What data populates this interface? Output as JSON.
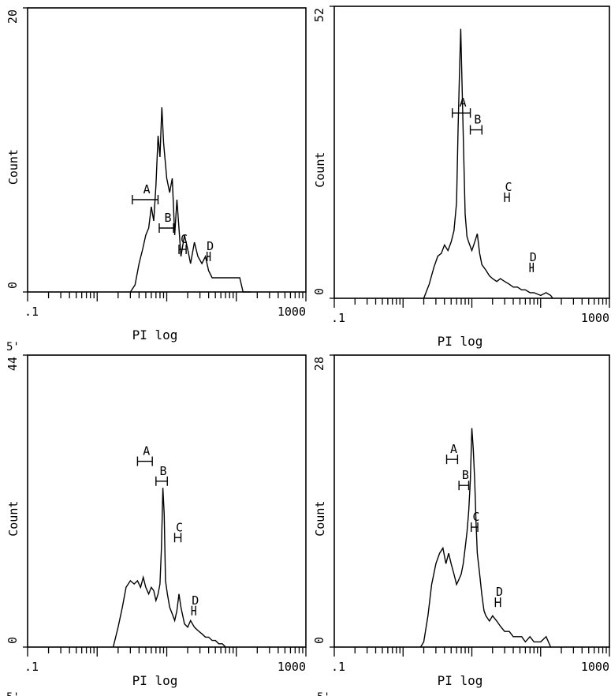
{
  "chart_data": [
    {
      "panel": "i",
      "type": "line",
      "xscale": "log",
      "xlim": [
        0.1,
        1000
      ],
      "ylim": [
        0,
        20
      ],
      "x_tick_labels": [
        ".1",
        "1000"
      ],
      "y_tick_labels": [
        "0",
        "20"
      ],
      "xlabel": "PI log",
      "ylabel": "Count",
      "corner_text": "5'",
      "series": [
        {
          "x": [
            3.0,
            3.5,
            4.0,
            4.5,
            5.0,
            5.5,
            6.0,
            6.5,
            7.0,
            7.5,
            8.0,
            8.5,
            9.0,
            10,
            11,
            12,
            13,
            14,
            15,
            16,
            18,
            20,
            22,
            25,
            28,
            32,
            36,
            40,
            45,
            50,
            56,
            63,
            71,
            80,
            90,
            100,
            112,
            125,
            140,
            160
          ],
          "y": [
            0,
            0.5,
            2,
            3,
            4,
            4.5,
            6,
            5,
            7.5,
            11,
            9.5,
            13,
            10.5,
            8,
            7,
            8,
            4,
            6.5,
            4.5,
            2.5,
            4,
            3,
            2,
            3.5,
            2.5,
            2,
            2.5,
            1.5,
            1,
            1,
            1,
            1,
            1,
            1,
            1,
            1,
            1,
            0,
            0,
            0
          ]
        }
      ],
      "markers": [
        {
          "label": "A",
          "x_min": 3.2,
          "x_max": 7.5,
          "y": 6.5
        },
        {
          "label": "B",
          "x_min": 7.8,
          "x_max": 12.5,
          "y": 4.5
        },
        {
          "label": "C",
          "x_min": 15.0,
          "x_max": 19.0,
          "y": 3.0
        },
        {
          "label": "D",
          "x_min": 38.0,
          "x_max": 42.0,
          "y": 2.5
        }
      ]
    },
    {
      "panel": "ii",
      "type": "line",
      "xscale": "log",
      "xlim": [
        0.1,
        1000
      ],
      "ylim": [
        0,
        52
      ],
      "x_tick_labels": [
        ".1",
        "1000"
      ],
      "y_tick_labels": [
        "0",
        "52"
      ],
      "xlabel": "PI log",
      "ylabel": "Count",
      "series": [
        {
          "x": [
            2.0,
            2.4,
            2.8,
            3.2,
            3.6,
            4.0,
            4.5,
            5.0,
            5.5,
            6.0,
            6.3,
            6.6,
            6.9,
            7.2,
            7.6,
            8.0,
            8.5,
            9.0,
            10,
            11,
            12,
            13,
            14,
            16,
            18,
            20,
            23,
            26,
            30,
            35,
            40,
            46,
            53,
            60,
            70,
            80,
            100,
            120,
            140,
            150
          ],
          "y": [
            0,
            2.5,
            5.5,
            7.5,
            8,
            9.5,
            8.5,
            10,
            12,
            17,
            30,
            40,
            48,
            38,
            26,
            15,
            11,
            10,
            8.5,
            10,
            11.5,
            8,
            6,
            5,
            4,
            3.5,
            3,
            3.5,
            3,
            2.5,
            2,
            2,
            1.5,
            1.5,
            1,
            1,
            0.5,
            1,
            0.5,
            0
          ]
        }
      ],
      "markers": [
        {
          "label": "A",
          "x_min": 5.2,
          "x_max": 9.5,
          "y": 33
        },
        {
          "label": "B",
          "x_min": 9.5,
          "x_max": 14.0,
          "y": 30
        },
        {
          "label": "C",
          "x_min": 30.0,
          "x_max": 35.0,
          "y": 18
        },
        {
          "label": "D",
          "x_min": 70.0,
          "x_max": 78.0,
          "y": 5.5
        }
      ]
    },
    {
      "panel": "iii",
      "type": "line",
      "xscale": "log",
      "xlim": [
        0.1,
        1000
      ],
      "ylim": [
        0,
        44
      ],
      "x_tick_labels": [
        ".1",
        "1000"
      ],
      "y_tick_labels": [
        "0",
        "44"
      ],
      "xlabel": "PI log",
      "ylabel": "Count",
      "corner_text": "5'",
      "series": [
        {
          "x": [
            1.7,
            2.0,
            2.3,
            2.6,
            3.0,
            3.4,
            3.8,
            4.2,
            4.6,
            5.0,
            5.5,
            6.0,
            6.5,
            7.0,
            7.5,
            8.0,
            8.4,
            8.8,
            9.2,
            9.6,
            10.2,
            11,
            12,
            13,
            14,
            15,
            16,
            18,
            20,
            22,
            25,
            28,
            32,
            36,
            40,
            45,
            50,
            56,
            63,
            70
          ],
          "y": [
            0,
            3,
            6,
            9,
            10,
            9.5,
            10,
            9,
            10.5,
            9,
            8,
            9,
            8.5,
            7,
            8,
            9.5,
            15,
            24,
            20,
            10,
            8,
            6,
            5,
            4,
            5.5,
            8,
            6,
            3.5,
            3,
            4,
            3,
            2.5,
            2,
            1.5,
            1.5,
            1,
            1,
            0.5,
            0.5,
            0
          ]
        }
      ],
      "markers": [
        {
          "label": "A",
          "x_min": 3.8,
          "x_max": 6.2,
          "y": 28
        },
        {
          "label": "B",
          "x_min": 7.0,
          "x_max": 10.2,
          "y": 25
        },
        {
          "label": "C",
          "x_min": 13.0,
          "x_max": 16.0,
          "y": 16.5
        },
        {
          "label": "D",
          "x_min": 23.0,
          "x_max": 26.0,
          "y": 5.5
        }
      ]
    },
    {
      "panel": "iv",
      "type": "line",
      "xscale": "log",
      "xlim": [
        0.1,
        1000
      ],
      "ylim": [
        0,
        28
      ],
      "x_tick_labels": [
        ".1",
        "1000"
      ],
      "y_tick_labels": [
        "0",
        "28"
      ],
      "xlabel": "PI log",
      "ylabel": "Count",
      "corner_text": "5'",
      "series": [
        {
          "x": [
            1.8,
            2.0,
            2.3,
            2.6,
            3.0,
            3.4,
            3.8,
            4.2,
            4.6,
            5.0,
            5.5,
            6.0,
            6.5,
            7.0,
            7.5,
            8.0,
            8.5,
            9.0,
            9.5,
            10,
            10.5,
            11,
            11.5,
            12,
            13,
            14,
            15,
            16,
            18,
            20,
            23,
            26,
            30,
            35,
            40,
            46,
            53,
            60,
            70,
            80,
            100,
            120,
            140
          ],
          "y": [
            0,
            0.5,
            3,
            6,
            8,
            9,
            9.5,
            8,
            9,
            8,
            7,
            6,
            6.5,
            7,
            8,
            9.5,
            11,
            13,
            16,
            21,
            19,
            16,
            12,
            9,
            7,
            5,
            3.5,
            3,
            2.5,
            3,
            2.5,
            2,
            1.5,
            1.5,
            1,
            1,
            1,
            0.5,
            1,
            0.5,
            0.5,
            1,
            0
          ]
        }
      ],
      "markers": [
        {
          "label": "A",
          "x_min": 4.3,
          "x_max": 6.2,
          "y": 18
        },
        {
          "label": "B",
          "x_min": 6.5,
          "x_max": 9.0,
          "y": 15.5
        },
        {
          "label": "C",
          "x_min": 9.8,
          "x_max": 12.2,
          "y": 11.5
        },
        {
          "label": "D",
          "x_min": 22.0,
          "x_max": 26.0,
          "y": 4.3
        }
      ]
    }
  ]
}
